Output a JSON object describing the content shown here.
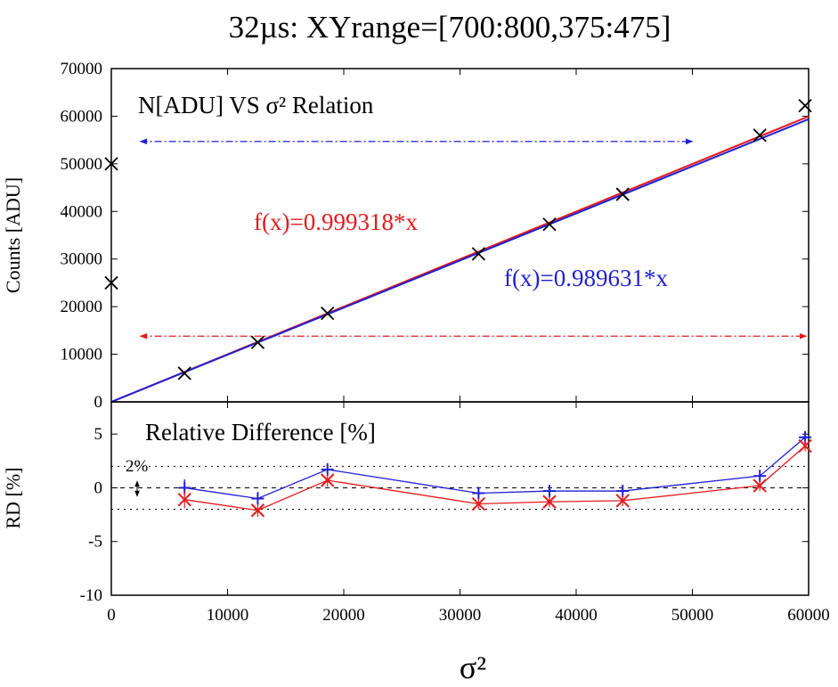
{
  "chart_data": [
    {
      "type": "line",
      "title": "32µs: XYrange=[700:800,375:475]",
      "annotation_title": "N[ADU] VS σ² Relation",
      "ylabel": "Counts [ADU]",
      "xlabel": "σ²",
      "xlim": [
        0,
        60000
      ],
      "ylim": [
        0,
        70000
      ],
      "x_ticks": [
        "0",
        "10000",
        "20000",
        "30000",
        "40000",
        "50000",
        "60000"
      ],
      "y_ticks": [
        "0",
        "10000",
        "20000",
        "30000",
        "40000",
        "50000",
        "60000",
        "70000"
      ],
      "series": [
        {
          "name": "data",
          "color": "#000000",
          "marker": "x",
          "x": [
            6300,
            12600,
            18600,
            31600,
            37700,
            44000,
            55800,
            59700
          ],
          "y": [
            6000,
            12500,
            18600,
            31100,
            37300,
            43600,
            56000,
            62200
          ]
        },
        {
          "name": "f(x)=0.999318*x",
          "color": "#e41a1c",
          "slope": 0.999318
        },
        {
          "name": "f(x)=0.989631*x",
          "color": "#1f1fd6",
          "slope": 0.989631
        }
      ],
      "axis_markers": [
        {
          "x": 0,
          "y": 50000
        },
        {
          "x": 0,
          "y": 25000
        }
      ],
      "range_arrows": [
        {
          "color": "#1f1fd6",
          "x_from": 2500,
          "x_to": 50000,
          "y": 54700
        },
        {
          "color": "#e41a1c",
          "x_from": 2500,
          "x_to": 59800,
          "y": 13800
        }
      ]
    },
    {
      "type": "line",
      "title": "Relative Difference [%]",
      "ylabel": "RD [%]",
      "xlim": [
        0,
        60000
      ],
      "ylim": [
        -10,
        8
      ],
      "x_ticks": [
        "0",
        "10000",
        "20000",
        "30000",
        "40000",
        "50000",
        "60000"
      ],
      "y_ticks": [
        "5",
        "0",
        "-5",
        "-10"
      ],
      "band_label": "2%",
      "reference_lines": [
        2,
        0,
        -2
      ],
      "series": [
        {
          "name": "blue",
          "color": "#1f1fd6",
          "marker": "+",
          "x": [
            6300,
            12600,
            18600,
            31600,
            37700,
            44000,
            55800,
            59700
          ],
          "y": [
            0.0,
            -1.0,
            1.7,
            -0.5,
            -0.3,
            -0.3,
            1.1,
            4.7
          ],
          "err": [
            0.8,
            0.6,
            0.6,
            0.5,
            0.5,
            0.5,
            0.5,
            0.5
          ]
        },
        {
          "name": "red",
          "color": "#e41a1c",
          "marker": "x",
          "x": [
            6300,
            12600,
            18600,
            31600,
            37700,
            44000,
            55800,
            59700
          ],
          "y": [
            -1.1,
            -2.1,
            0.7,
            -1.5,
            -1.3,
            -1.2,
            0.2,
            3.9
          ],
          "err": [
            0.8,
            0.6,
            0.6,
            0.5,
            0.5,
            0.5,
            0.5,
            0.5
          ]
        }
      ]
    }
  ]
}
